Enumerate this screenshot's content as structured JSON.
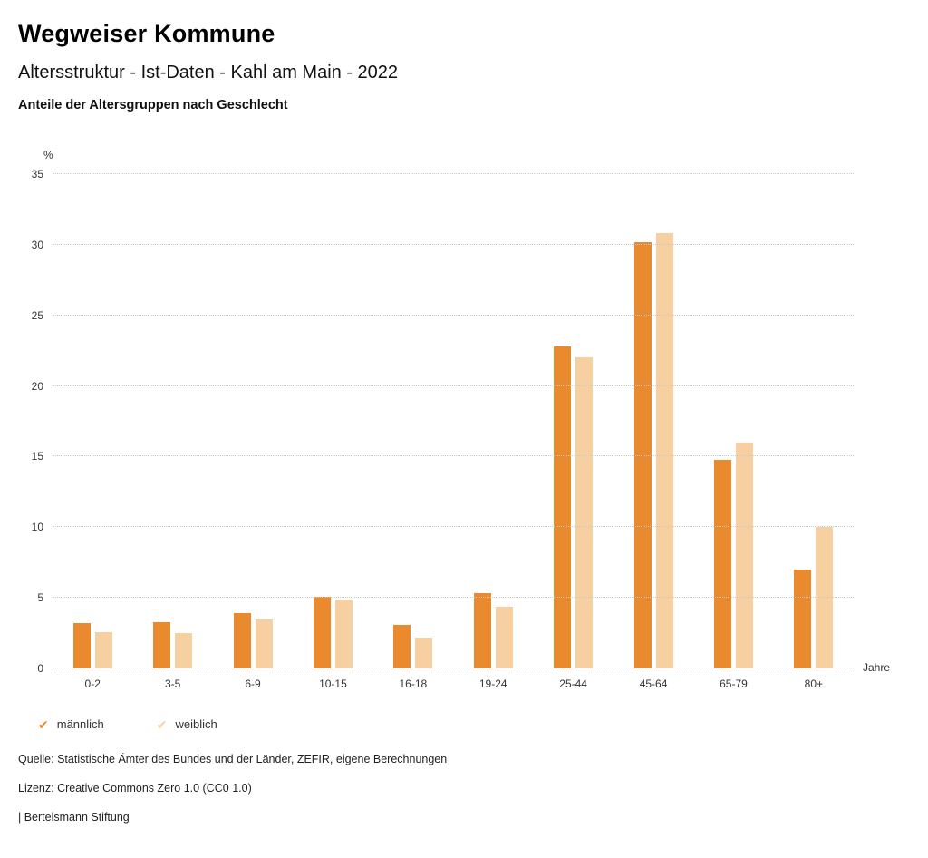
{
  "header": {
    "title": "Wegweiser Kommune",
    "subtitle": "Altersstruktur - Ist-Daten - Kahl am Main - 2022",
    "chart_heading": "Anteile der Altersgruppen nach Geschlecht"
  },
  "chart_data": {
    "type": "bar",
    "title": "Anteile der Altersgruppen nach Geschlecht",
    "categories": [
      "0-2",
      "3-5",
      "6-9",
      "10-15",
      "16-18",
      "19-24",
      "25-44",
      "45-64",
      "65-79",
      "80+"
    ],
    "series": [
      {
        "name": "männlich",
        "color": "#E98A2E",
        "values": [
          3.2,
          3.3,
          3.9,
          5.1,
          3.1,
          5.3,
          22.8,
          30.2,
          14.8,
          7.0
        ]
      },
      {
        "name": "weiblich",
        "color": "#F6D0A0",
        "values": [
          2.6,
          2.5,
          3.5,
          4.9,
          2.2,
          4.4,
          22.0,
          30.8,
          16.0,
          10.0
        ]
      }
    ],
    "y_axis_label": "%",
    "x_axis_label": "Jahre",
    "ylim": [
      0,
      35
    ],
    "yticks": [
      0,
      5,
      10,
      15,
      20,
      25,
      30,
      35
    ],
    "grid": "horizontal-dotted",
    "legend_position": "bottom-left",
    "legend_marker": "check"
  },
  "footer": {
    "source": "Quelle: Statistische Ämter des Bundes und der Länder, ZEFIR, eigene Berechnungen",
    "license": "Lizenz: Creative Commons Zero 1.0 (CC0 1.0)",
    "attribution": "| Bertelsmann Stiftung"
  }
}
